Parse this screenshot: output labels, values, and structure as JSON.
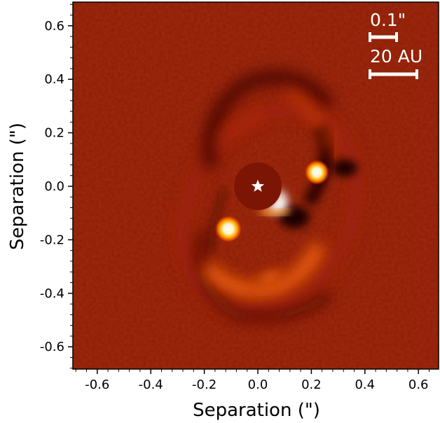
{
  "image": {
    "x_axis_label": "Separation (\")",
    "y_axis_label": "Separation (\")",
    "x_ticks": [
      "-0.6",
      "-0.4",
      "-0.2",
      "0.0",
      "0.2",
      "0.4",
      "0.6"
    ],
    "y_ticks": [
      "0.6",
      "0.4",
      "0.2",
      "0.0",
      "-0.2",
      "-0.4",
      "-0.6"
    ],
    "scale_bar_angular_label": "0.1\"",
    "scale_bar_physical_label": "20 AU",
    "colormap": "dark-red to white",
    "background_color": "#8e1c06",
    "star_marker": "star-icon"
  }
}
